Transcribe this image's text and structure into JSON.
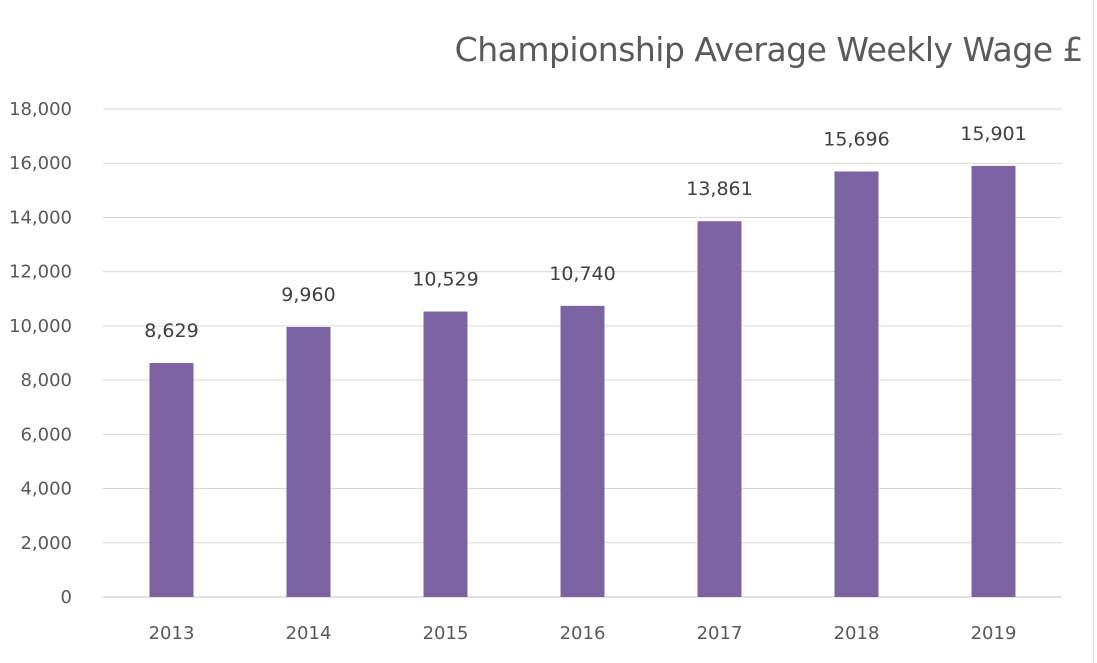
{
  "chart_data": {
    "type": "bar",
    "title": "Championship Average Weekly Wage £",
    "categories": [
      "2013",
      "2014",
      "2015",
      "2016",
      "2017",
      "2018",
      "2019"
    ],
    "values": [
      8629,
      9960,
      10529,
      10740,
      13861,
      15696,
      15901
    ],
    "data_labels": [
      "8,629",
      "9,960",
      "10,529",
      "10,740",
      "13,861",
      "15,696",
      "15,901"
    ],
    "y_ticks": [
      "0",
      "2,000",
      "4,000",
      "6,000",
      "8,000",
      "10,000",
      "12,000",
      "14,000",
      "16,000",
      "18,000"
    ],
    "ylim": [
      0,
      18000
    ],
    "xlabel": "",
    "ylabel": "",
    "grid": true,
    "legend": "none",
    "bar_color": "#7b64a1",
    "grid_color": "#d9d9d9"
  }
}
